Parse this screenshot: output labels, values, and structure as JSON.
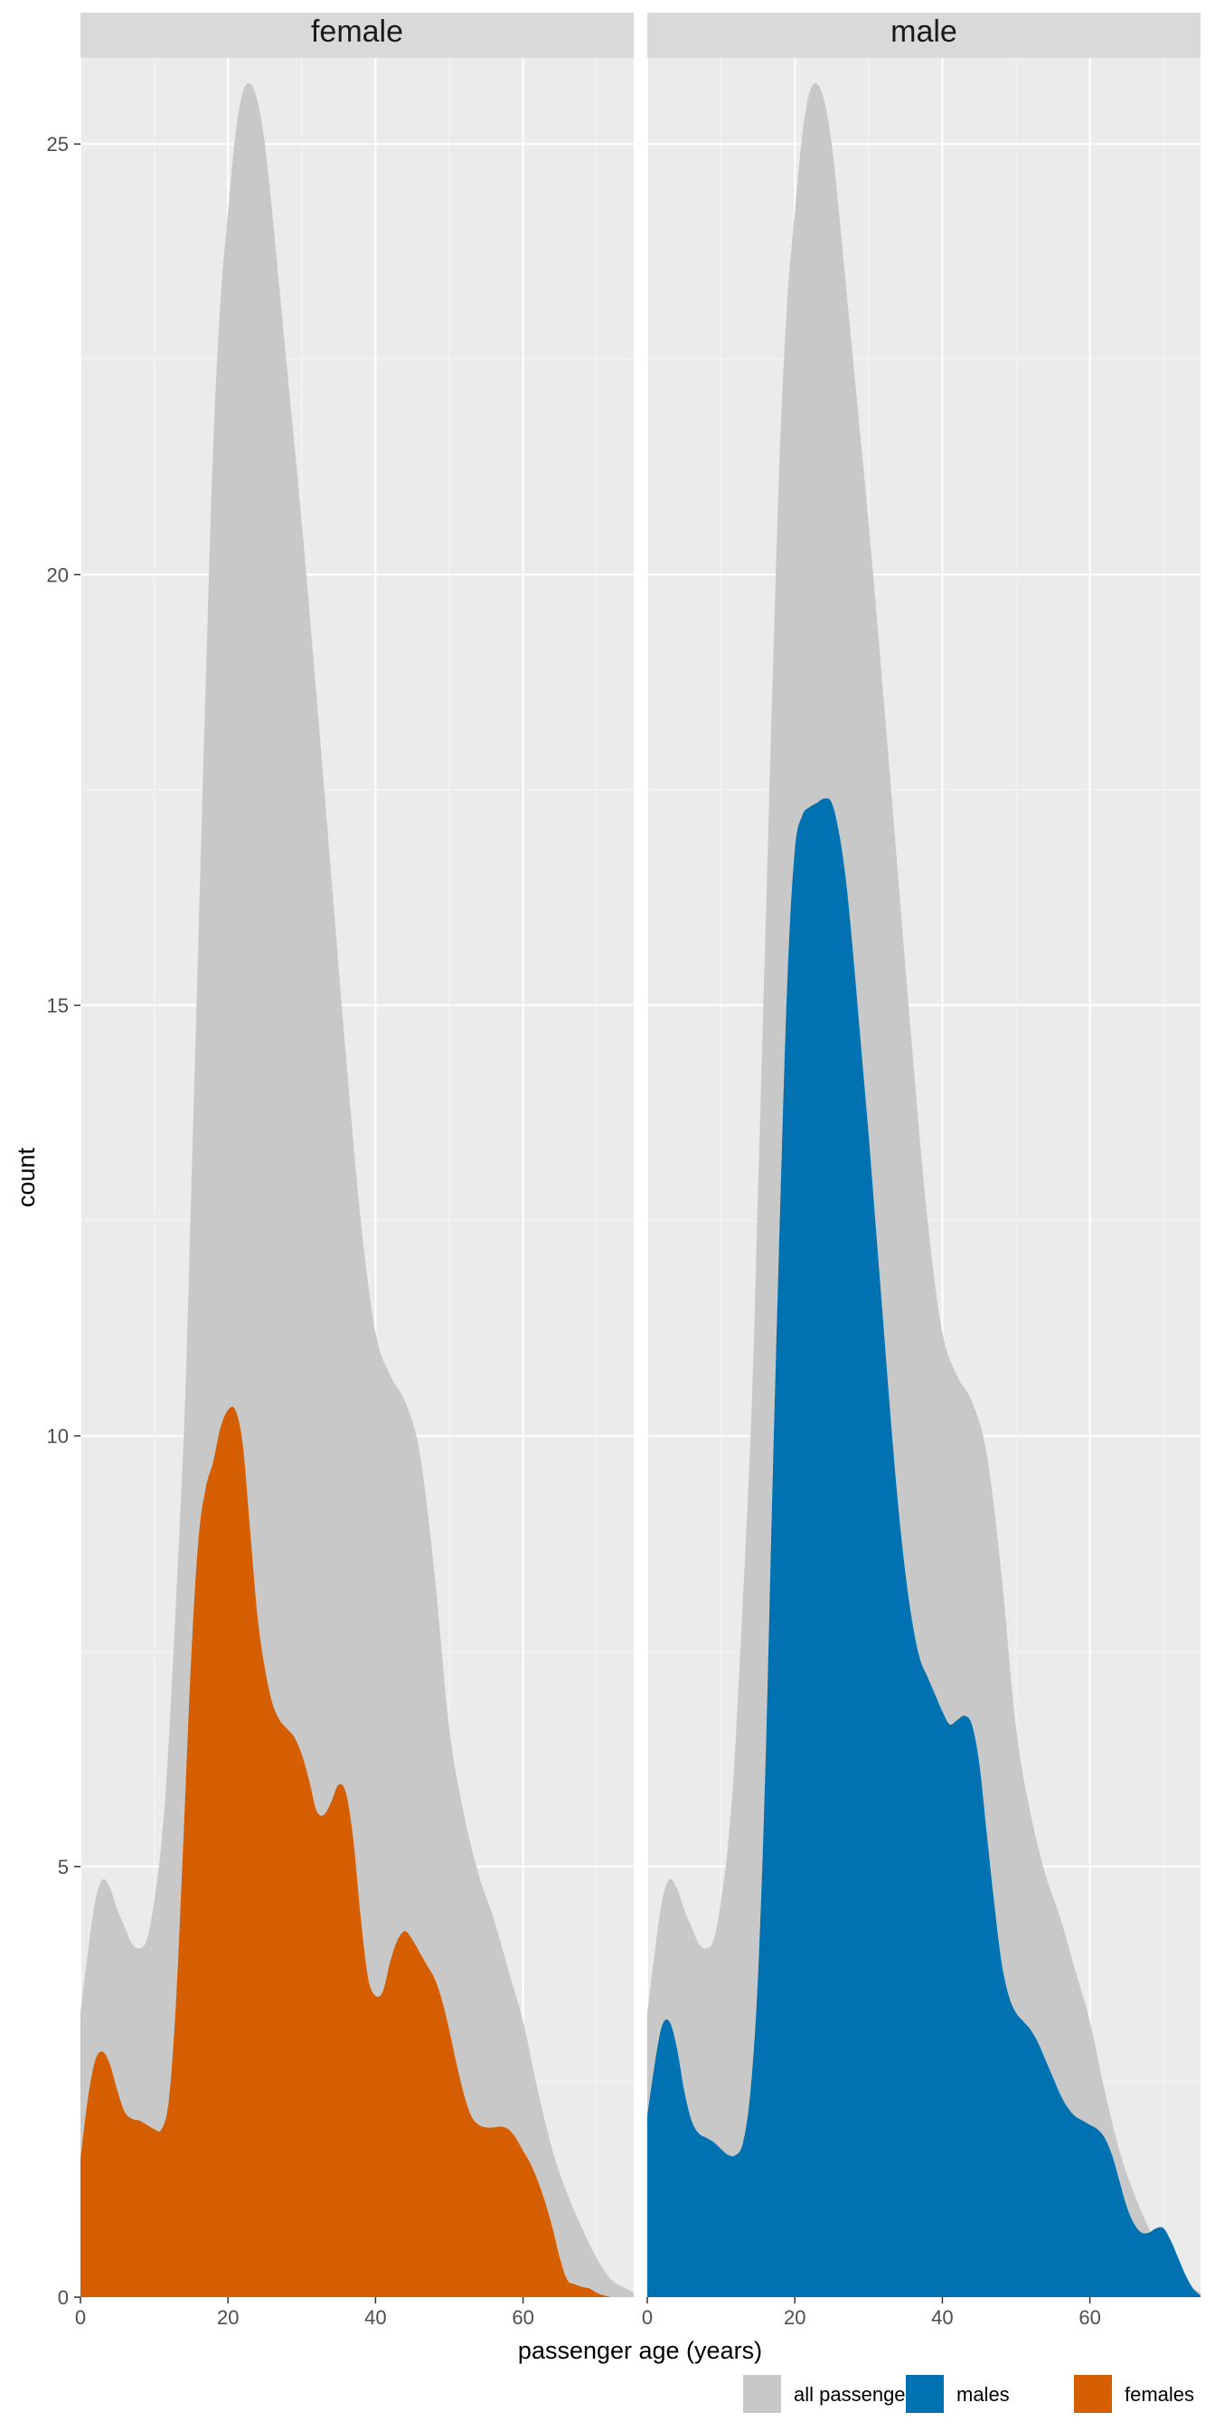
{
  "chart_data": {
    "type": "area",
    "chart_kind": "faceted density (count) area chart",
    "facets": [
      "female",
      "male"
    ],
    "xlabel": "passenger age (years)",
    "ylabel": "count",
    "xlim": [
      0,
      75
    ],
    "ylim": [
      0,
      26
    ],
    "x_ticks": [
      0,
      20,
      40,
      60
    ],
    "y_ticks": [
      0,
      5,
      10,
      15,
      20,
      25
    ],
    "grid": true,
    "legend_position": "bottom-right",
    "legend": [
      {
        "label": "all passengers",
        "color": "#C8C8C8"
      },
      {
        "label": "males",
        "color": "#0072B2"
      },
      {
        "label": "females",
        "color": "#D55E00"
      }
    ],
    "colors": {
      "panel_background": "#EBEBEB",
      "strip_background": "#D9D9D9",
      "grid_major": "#FFFFFF",
      "all_passengers": "#C8C8C8",
      "males": "#0072B2",
      "females": "#D55E00"
    },
    "series": [
      {
        "name": "all passengers",
        "x": [
          0,
          1,
          2,
          3,
          4,
          5,
          6,
          7,
          8,
          9,
          10,
          11,
          12,
          14,
          15,
          16,
          17,
          18,
          19,
          20,
          21,
          22,
          23,
          24,
          25,
          26,
          27,
          28,
          30,
          32,
          34,
          36,
          38,
          40,
          42,
          44,
          46,
          48,
          50,
          52,
          54,
          56,
          58,
          60,
          62,
          64,
          66,
          68,
          70,
          72,
          74,
          75
        ],
        "y": [
          3.3,
          4.0,
          4.6,
          4.85,
          4.75,
          4.5,
          4.3,
          4.1,
          4.05,
          4.15,
          4.6,
          5.3,
          6.5,
          10.0,
          12.8,
          15.8,
          18.8,
          21.5,
          23.2,
          24.2,
          25.1,
          25.6,
          25.7,
          25.5,
          25.0,
          24.2,
          23.3,
          22.4,
          20.6,
          18.6,
          16.5,
          14.4,
          12.5,
          11.2,
          10.7,
          10.4,
          9.8,
          8.4,
          6.6,
          5.6,
          4.9,
          4.4,
          3.8,
          3.2,
          2.4,
          1.7,
          1.2,
          0.8,
          0.45,
          0.2,
          0.1,
          0.05
        ]
      },
      {
        "name": "females",
        "facet": "female",
        "x": [
          0,
          1,
          2,
          3,
          4,
          5,
          6,
          7,
          8,
          9,
          10,
          11,
          12,
          13,
          14,
          15,
          16,
          17,
          18,
          19,
          20,
          21,
          22,
          23,
          24,
          25,
          26,
          27,
          28,
          29,
          30,
          31,
          32,
          33,
          34,
          35,
          36,
          37,
          38,
          39,
          40,
          41,
          42,
          43,
          44,
          45,
          46,
          47,
          48,
          49,
          50,
          51,
          52,
          53,
          54,
          55,
          56,
          57,
          58,
          59,
          60,
          61,
          62,
          63,
          64,
          65,
          66,
          67,
          68,
          69,
          70,
          71,
          72,
          73,
          74,
          75
        ],
        "y": [
          1.6,
          2.3,
          2.75,
          2.85,
          2.7,
          2.4,
          2.15,
          2.07,
          2.05,
          2.0,
          1.95,
          1.95,
          2.3,
          3.5,
          5.4,
          7.4,
          8.8,
          9.4,
          9.7,
          10.1,
          10.3,
          10.3,
          9.9,
          8.9,
          7.9,
          7.3,
          6.9,
          6.7,
          6.6,
          6.5,
          6.3,
          6.0,
          5.65,
          5.6,
          5.75,
          5.95,
          5.85,
          5.3,
          4.4,
          3.7,
          3.5,
          3.55,
          3.9,
          4.15,
          4.25,
          4.15,
          4.0,
          3.85,
          3.7,
          3.45,
          3.1,
          2.7,
          2.35,
          2.1,
          2.0,
          1.97,
          1.97,
          1.98,
          1.95,
          1.85,
          1.7,
          1.55,
          1.35,
          1.1,
          0.8,
          0.45,
          0.2,
          0.15,
          0.12,
          0.1,
          0.05,
          0.02,
          0,
          0,
          0,
          0
        ]
      },
      {
        "name": "males",
        "facet": "male",
        "x": [
          0,
          1,
          2,
          3,
          4,
          5,
          6,
          7,
          8,
          9,
          10,
          11,
          12,
          13,
          14,
          15,
          16,
          17,
          18,
          19,
          20,
          21,
          22,
          23,
          24,
          25,
          26,
          27,
          28,
          29,
          30,
          31,
          32,
          33,
          34,
          35,
          36,
          37,
          38,
          39,
          40,
          41,
          42,
          43,
          44,
          45,
          46,
          47,
          48,
          49,
          50,
          51,
          52,
          53,
          54,
          55,
          56,
          57,
          58,
          59,
          60,
          61,
          62,
          63,
          64,
          65,
          66,
          67,
          68,
          69,
          70,
          71,
          72,
          73,
          74,
          75
        ],
        "y": [
          2.1,
          2.7,
          3.15,
          3.2,
          2.9,
          2.4,
          2.05,
          1.9,
          1.85,
          1.8,
          1.72,
          1.65,
          1.65,
          1.8,
          2.4,
          3.7,
          6.1,
          9.5,
          12.6,
          15.3,
          16.8,
          17.2,
          17.3,
          17.35,
          17.4,
          17.35,
          17.0,
          16.4,
          15.5,
          14.5,
          13.5,
          12.4,
          11.3,
          10.2,
          9.2,
          8.4,
          7.8,
          7.4,
          7.2,
          7.0,
          6.8,
          6.65,
          6.7,
          6.75,
          6.65,
          6.2,
          5.4,
          4.6,
          3.9,
          3.5,
          3.3,
          3.2,
          3.1,
          2.95,
          2.75,
          2.55,
          2.35,
          2.2,
          2.1,
          2.05,
          2.0,
          1.95,
          1.85,
          1.65,
          1.35,
          1.05,
          0.85,
          0.75,
          0.75,
          0.8,
          0.8,
          0.65,
          0.45,
          0.25,
          0.1,
          0.02
        ]
      }
    ]
  }
}
